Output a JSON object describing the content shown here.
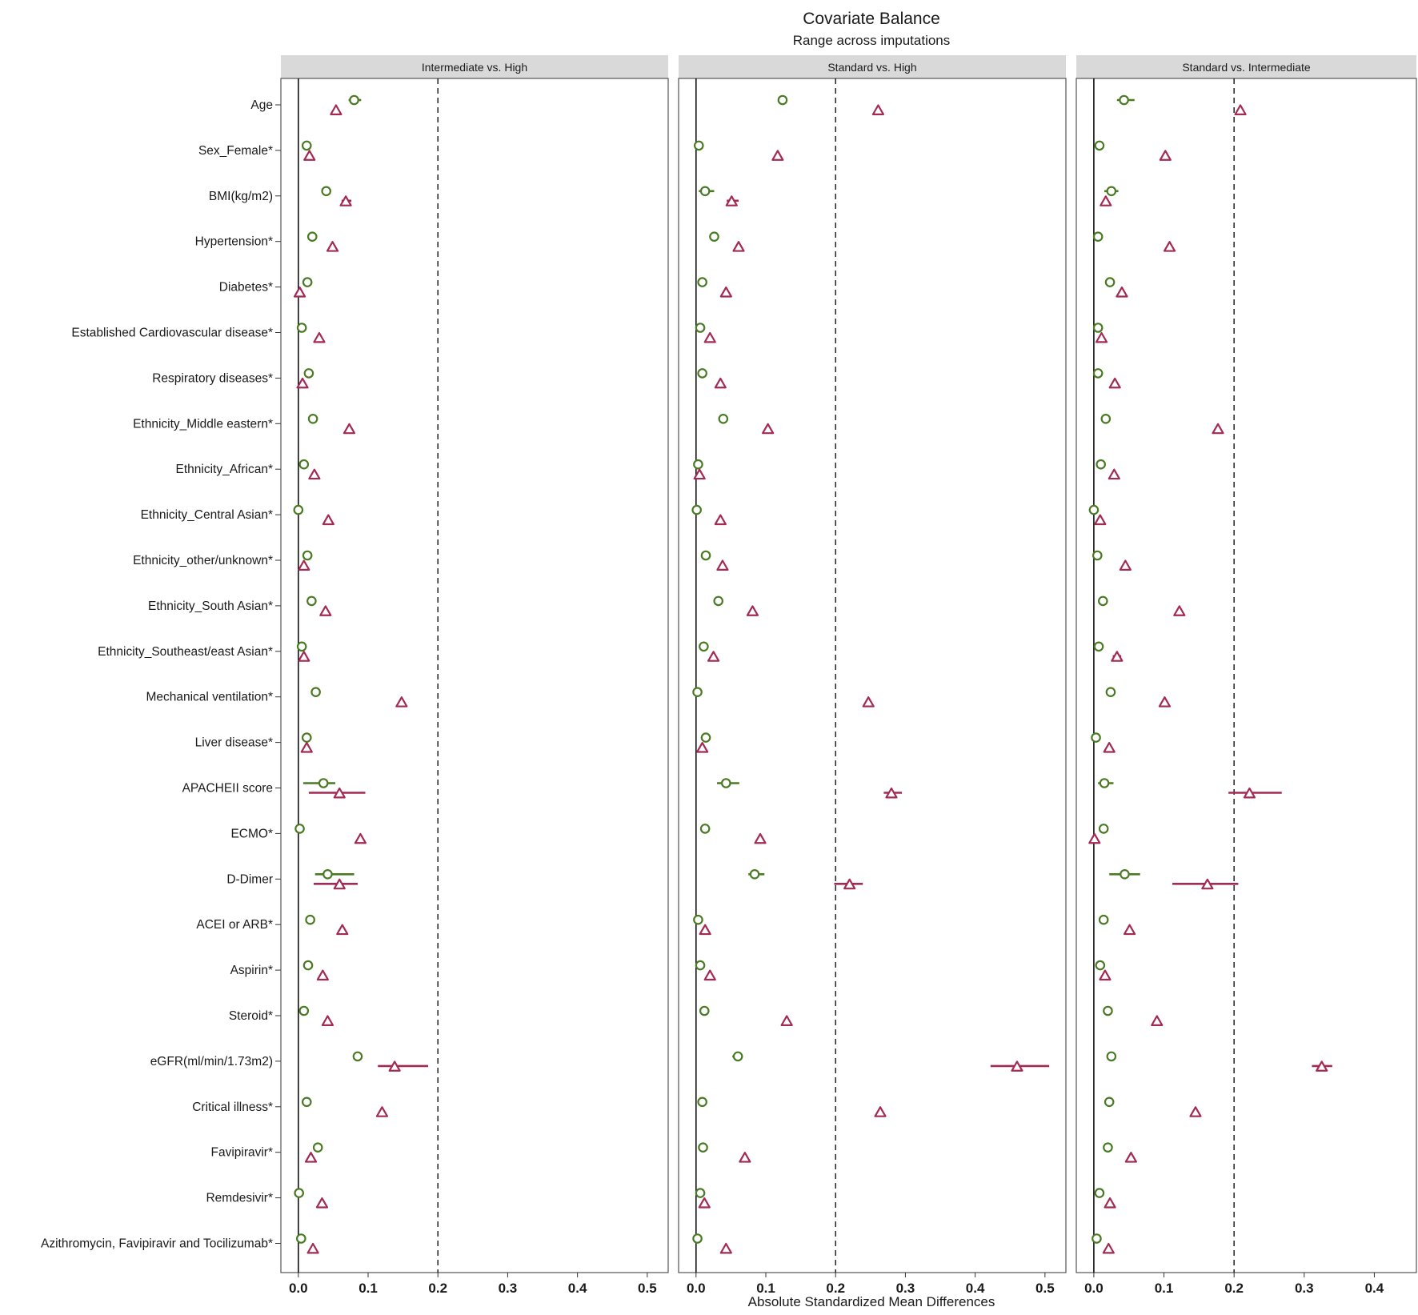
{
  "chart_data": {
    "type": "scatter",
    "title": "Covariate Balance",
    "subtitle": "Range across imputations",
    "xlabel": "Absolute Standardized Mean Differences",
    "threshold": 0.2,
    "colors": {
      "circle": "#4a7a23",
      "triangle": "#a32a52",
      "strip": "#d9d9d9"
    },
    "marker_legend": {
      "circle": "green open circle (adjusted)",
      "triangle": "maroon open triangle (unadjusted)"
    },
    "covariates": [
      "Age",
      "Sex_Female*",
      "BMI(kg/m2)",
      "Hypertension*",
      "Diabetes*",
      "Established Cardiovascular disease*",
      "Respiratory diseases*",
      "Ethnicity_Middle eastern*",
      "Ethnicity_African*",
      "Ethnicity_Central Asian*",
      "Ethnicity_other/unknown*",
      "Ethnicity_South Asian*",
      "Ethnicity_Southeast/east Asian*",
      "Mechanical ventilation*",
      "Liver disease*",
      "APACHEII score",
      "ECMO*",
      "D-Dimer",
      "ACEI or ARB*",
      "Aspirin*",
      "Steroid*",
      "eGFR(ml/min/1.73m2)",
      "Critical illness*",
      "Favipiravir*",
      "Remdesivir*",
      "Azithromycin, Favipiravir and Tocilizumab*"
    ],
    "panels": [
      {
        "name": "Intermediate vs. High",
        "xlim": [
          -0.025,
          0.53
        ],
        "ticks": [
          "0.0",
          "0.1",
          "0.2",
          "0.3",
          "0.4",
          "0.5"
        ],
        "circle": [
          0.08,
          0.012,
          0.04,
          0.02,
          0.013,
          0.005,
          0.015,
          0.021,
          0.008,
          0.0,
          0.013,
          0.019,
          0.005,
          0.025,
          0.012,
          0.036,
          0.002,
          0.042,
          0.017,
          0.014,
          0.008,
          0.085,
          0.012,
          0.028,
          0.001,
          0.004
        ],
        "circle_range": [
          [
            0.072,
            0.09
          ],
          null,
          null,
          null,
          null,
          null,
          null,
          null,
          null,
          null,
          null,
          null,
          null,
          null,
          null,
          [
            0.007,
            0.053
          ],
          null,
          [
            0.024,
            0.08
          ],
          null,
          null,
          null,
          null,
          null,
          null,
          null,
          null
        ],
        "triangle": [
          0.054,
          0.016,
          0.068,
          0.049,
          0.002,
          0.03,
          0.006,
          0.073,
          0.023,
          0.043,
          0.008,
          0.039,
          0.008,
          0.148,
          0.012,
          0.059,
          0.089,
          0.059,
          0.063,
          0.035,
          0.042,
          0.138,
          0.12,
          0.018,
          0.034,
          0.021
        ],
        "triangle_range": [
          null,
          null,
          [
            0.062,
            0.076
          ],
          null,
          null,
          null,
          null,
          null,
          null,
          null,
          null,
          null,
          null,
          null,
          null,
          [
            0.015,
            0.096
          ],
          null,
          [
            0.022,
            0.085
          ],
          null,
          null,
          null,
          [
            0.114,
            0.186
          ],
          null,
          null,
          null,
          null
        ]
      },
      {
        "name": "Standard vs. High",
        "xlim": [
          -0.025,
          0.53
        ],
        "ticks": [
          "0.0",
          "0.1",
          "0.2",
          "0.3",
          "0.4",
          "0.5"
        ],
        "circle": [
          0.124,
          0.004,
          0.013,
          0.026,
          0.009,
          0.006,
          0.009,
          0.039,
          0.003,
          0.001,
          0.014,
          0.032,
          0.011,
          0.002,
          0.014,
          0.043,
          0.013,
          0.084,
          0.003,
          0.006,
          0.012,
          0.06,
          0.009,
          0.01,
          0.006,
          0.002
        ],
        "circle_range": [
          null,
          null,
          [
            0.004,
            0.026
          ],
          null,
          null,
          null,
          null,
          null,
          null,
          null,
          null,
          null,
          null,
          null,
          null,
          [
            0.03,
            0.062
          ],
          null,
          [
            0.075,
            0.098
          ],
          null,
          null,
          null,
          [
            0.052,
            0.067
          ],
          null,
          null,
          null,
          null
        ],
        "triangle": [
          0.261,
          0.117,
          0.051,
          0.061,
          0.043,
          0.02,
          0.035,
          0.103,
          0.005,
          0.035,
          0.038,
          0.081,
          0.025,
          0.247,
          0.009,
          0.28,
          0.092,
          0.22,
          0.013,
          0.02,
          0.13,
          0.46,
          0.264,
          0.07,
          0.012,
          0.043
        ],
        "triangle_range": [
          null,
          null,
          [
            0.044,
            0.061
          ],
          null,
          null,
          null,
          null,
          null,
          null,
          null,
          null,
          null,
          null,
          null,
          null,
          [
            0.269,
            0.295
          ],
          null,
          [
            0.198,
            0.239
          ],
          null,
          null,
          null,
          [
            0.422,
            0.506
          ],
          null,
          null,
          null,
          null
        ]
      },
      {
        "name": "Standard vs. Intermediate",
        "xlim": [
          -0.025,
          0.46
        ],
        "ticks": [
          "0.0",
          "0.1",
          "0.2",
          "0.3",
          "0.4"
        ],
        "circle": [
          0.043,
          0.008,
          0.025,
          0.006,
          0.023,
          0.006,
          0.006,
          0.017,
          0.01,
          0.0,
          0.005,
          0.013,
          0.007,
          0.024,
          0.003,
          0.015,
          0.014,
          0.044,
          0.014,
          0.009,
          0.02,
          0.025,
          0.022,
          0.02,
          0.008,
          0.004
        ],
        "circle_range": [
          [
            0.033,
            0.058
          ],
          null,
          [
            0.015,
            0.035
          ],
          null,
          null,
          null,
          null,
          null,
          null,
          null,
          null,
          null,
          null,
          null,
          null,
          [
            0.006,
            0.028
          ],
          null,
          [
            0.022,
            0.066
          ],
          null,
          null,
          null,
          null,
          null,
          null,
          null,
          null
        ],
        "triangle": [
          0.209,
          0.102,
          0.017,
          0.108,
          0.04,
          0.011,
          0.03,
          0.177,
          0.029,
          0.009,
          0.045,
          0.122,
          0.033,
          0.101,
          0.022,
          0.222,
          0.001,
          0.162,
          0.051,
          0.016,
          0.09,
          0.325,
          0.145,
          0.053,
          0.023,
          0.021
        ],
        "triangle_range": [
          null,
          null,
          null,
          null,
          null,
          null,
          null,
          null,
          null,
          null,
          null,
          null,
          [
            0.027,
            0.039
          ],
          null,
          null,
          [
            0.192,
            0.268
          ],
          null,
          [
            0.112,
            0.206
          ],
          null,
          null,
          null,
          [
            0.311,
            0.34
          ],
          null,
          null,
          null,
          null
        ]
      }
    ]
  }
}
